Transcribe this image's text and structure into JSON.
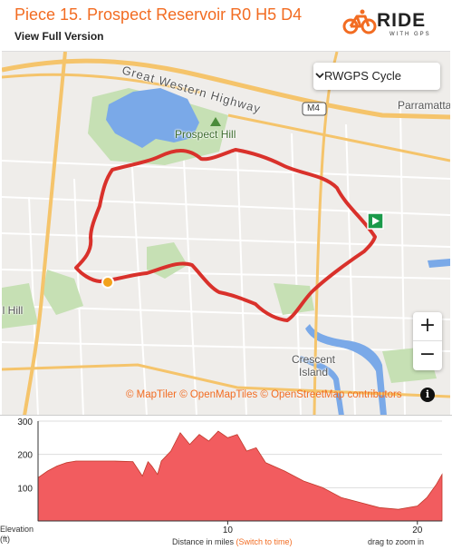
{
  "header": {
    "title": "Piece 15. Prospect Reservoir R0 H5 D4",
    "subtitle": "View Full Version",
    "logo_word": "RIDE",
    "logo_sub": "WITH GPS"
  },
  "map": {
    "layer_select": {
      "value": "RWGPS Cycle"
    },
    "labels": {
      "highway": "Great Western Highway",
      "motorway": "M4",
      "suburb_1": "Prospect Hill",
      "suburb_2": "Parramatta",
      "suburb_3": "Crescent\nIsland",
      "suburb_4": "il Hill"
    },
    "zoom_in": "+",
    "zoom_out": "−",
    "attribution": {
      "maptiler": "© MapTiler",
      "openmaptiles": "© OpenMapTiles",
      "osm": "© OpenStreetMap contributors"
    },
    "info": "i",
    "colors": {
      "route": "#d9312b",
      "water": "#7aa9e8",
      "park": "#c6e0b4",
      "road": "#f5c46b",
      "accent": "#f26c22"
    }
  },
  "elevation": {
    "y_axis_label": "Elevation\n(ft)",
    "x_caption": "Distance in miles",
    "x_caption_link": "(Switch to time)",
    "drag_note": "drag to zoom in",
    "chart_data": {
      "type": "area",
      "xlabel": "Distance in miles",
      "ylabel": "Elevation (ft)",
      "xlim": [
        0,
        21.3
      ],
      "ylim": [
        0,
        300
      ],
      "y_ticks": [
        "300",
        "200",
        "100"
      ],
      "x_ticks": [
        "10",
        "20"
      ],
      "color": "#f25c5f",
      "x": [
        0,
        0.5,
        1,
        1.5,
        2,
        3,
        4,
        5,
        5.5,
        5.8,
        6,
        6.3,
        6.5,
        7,
        7.5,
        8,
        8.5,
        9,
        9.5,
        10,
        10.5,
        11,
        11.5,
        12,
        13,
        14,
        15,
        16,
        17,
        18,
        19,
        20,
        20.5,
        21,
        21.3
      ],
      "y": [
        130,
        150,
        165,
        175,
        180,
        180,
        180,
        178,
        135,
        178,
        165,
        140,
        180,
        210,
        265,
        230,
        260,
        240,
        270,
        250,
        260,
        210,
        220,
        175,
        150,
        120,
        100,
        70,
        55,
        40,
        35,
        45,
        70,
        110,
        140
      ]
    }
  }
}
